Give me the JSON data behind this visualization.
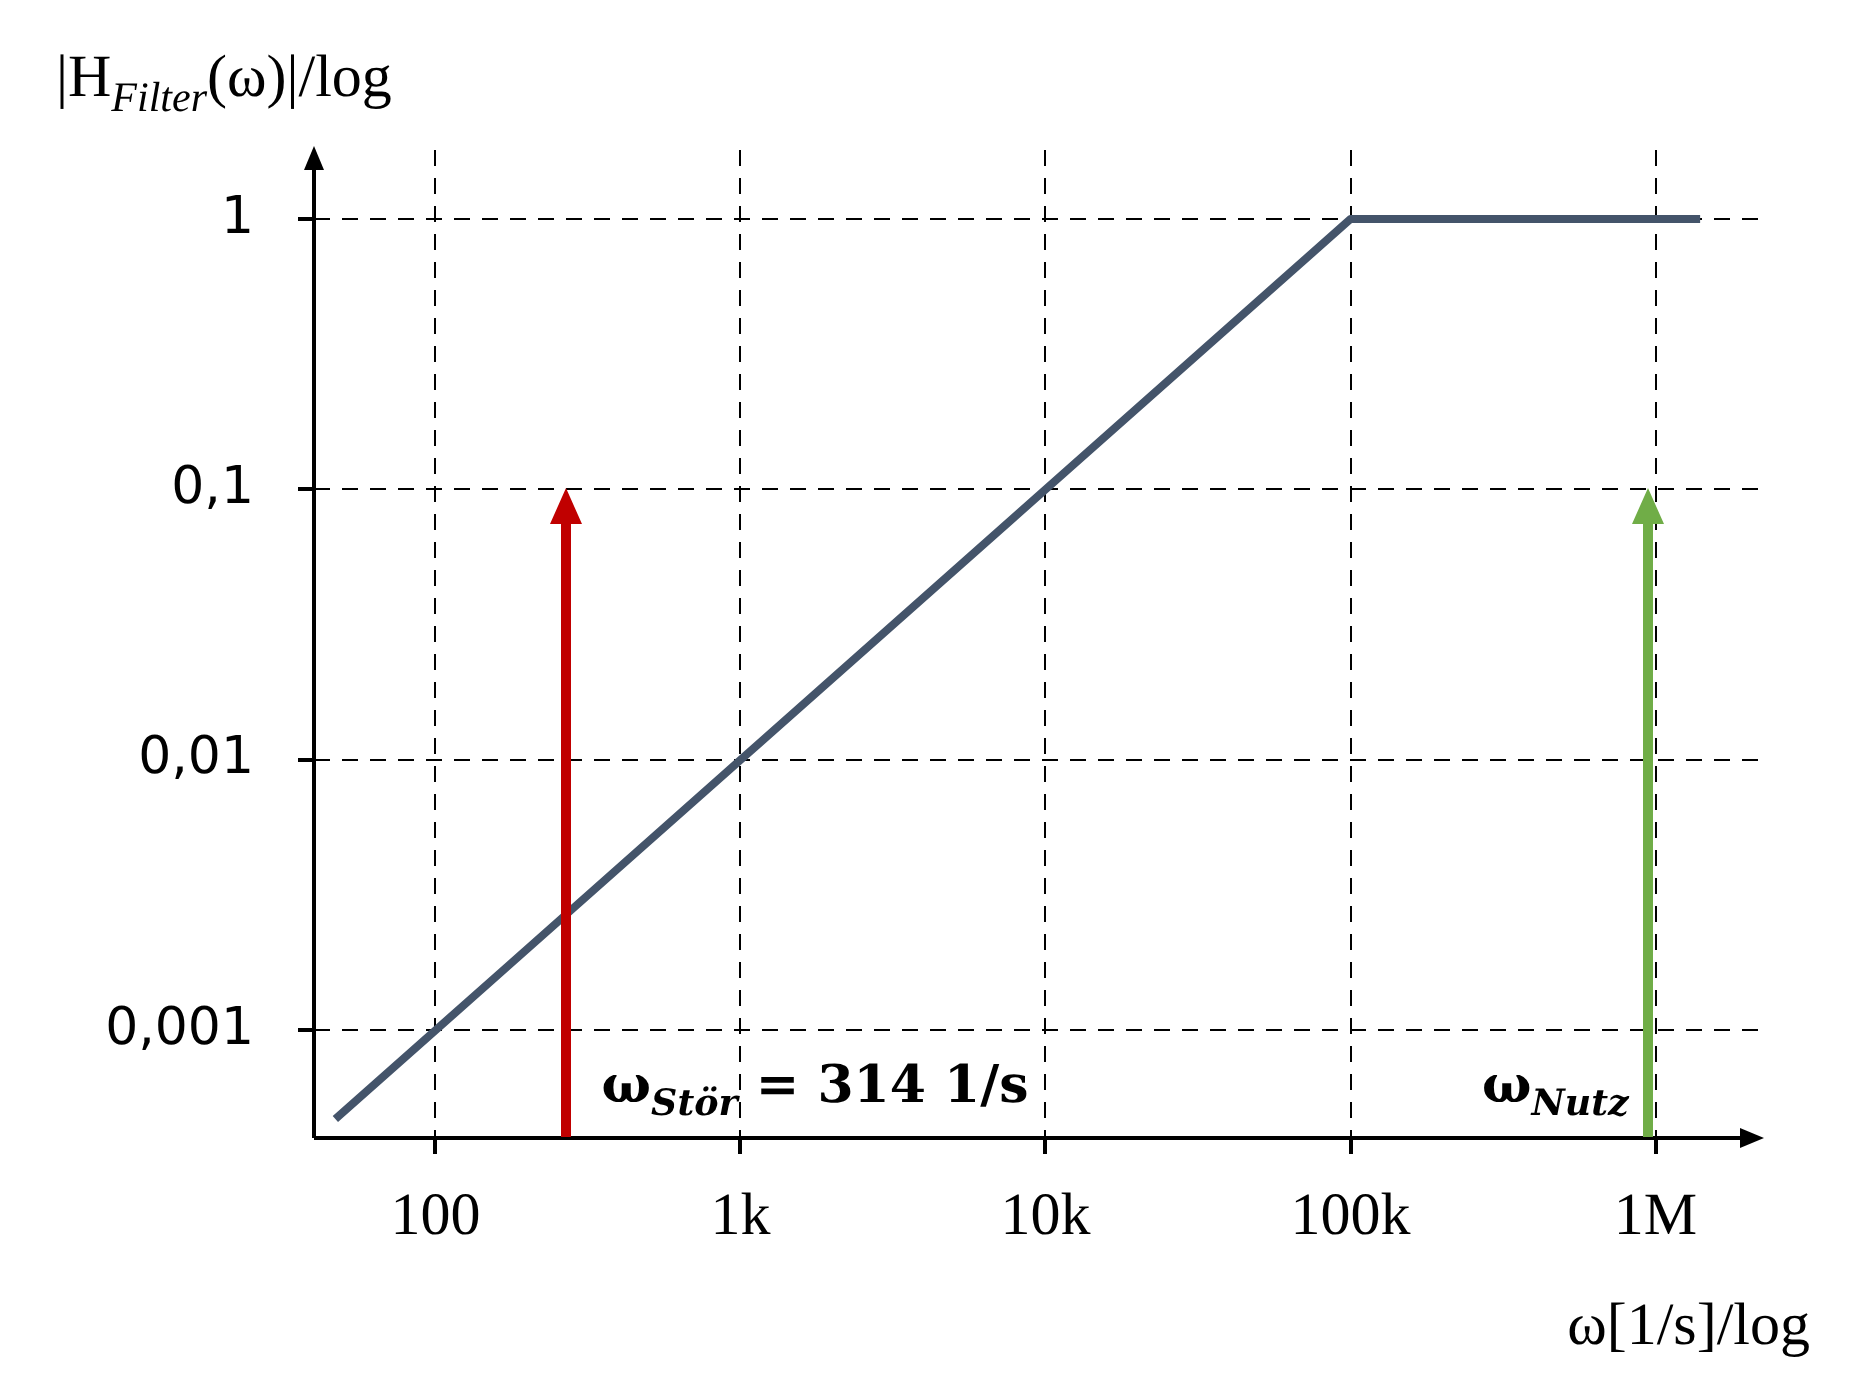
{
  "chart_data": {
    "type": "line",
    "log": "xy",
    "xlabel": "ω[1/s]/log",
    "ylabel": "|H$_{Filter}$(ω)|/log",
    "xlim": [
      40,
      2200000
    ],
    "ylim": [
      0.0004,
      1.8
    ],
    "xticks": [
      {
        "value": 100,
        "label": "100"
      },
      {
        "value": 1000,
        "label": "1k"
      },
      {
        "value": 10000,
        "label": "10k"
      },
      {
        "value": 100000,
        "label": "100k"
      },
      {
        "value": 1000000,
        "label": "1M"
      }
    ],
    "yticks": [
      {
        "value": 0.001,
        "label": "0,001"
      },
      {
        "value": 0.01,
        "label": "0,01"
      },
      {
        "value": 0.1,
        "label": "0,1"
      },
      {
        "value": 1,
        "label": "1"
      }
    ],
    "grid": true,
    "marker": "none",
    "series": [
      {
        "color": "#44546a",
        "x": [
          47,
          100000,
          1400000
        ],
        "values": [
          0.00047,
          1,
          1
        ]
      }
    ],
    "annotations": [
      "ω$_{Stör}$ = 314 1/s",
      "ω$_{Nutz}$"
    ]
  }
}
